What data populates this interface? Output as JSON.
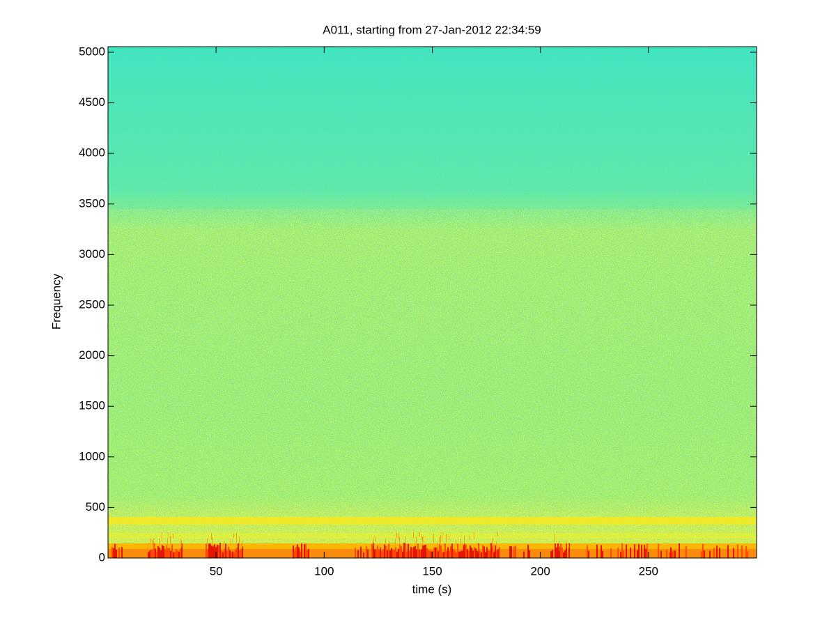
{
  "chart_data": {
    "type": "spectrogram",
    "title": "A011, starting from 27-Jan-2012 22:34:59",
    "xlabel": "time (s)",
    "ylabel": "Frequency",
    "xlim": [
      0,
      300
    ],
    "xticks": [
      50,
      100,
      150,
      200,
      250
    ],
    "ylim": [
      0,
      5055
    ],
    "yticks": [
      0,
      500,
      1000,
      1500,
      2000,
      2500,
      3000,
      3500,
      4000,
      4500,
      5000
    ],
    "colormap": "jet"
  }
}
